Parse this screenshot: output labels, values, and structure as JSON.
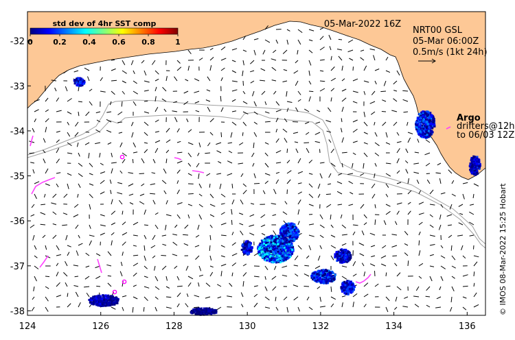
{
  "map": {
    "date_title": "05-Mar-2022 16Z",
    "colorbar": {
      "title": "std dev of 4hr SST comp",
      "ticks": [
        "0",
        "0.2",
        "0.4",
        "0.6",
        "0.8",
        "1"
      ],
      "colors": [
        "#00007f",
        "#0000ff",
        "#007fff",
        "#00ffff",
        "#7fff7f",
        "#ffff00",
        "#ff7f00",
        "#ff0000",
        "#7f0000"
      ]
    },
    "info": {
      "line1": "NRT00 GSL",
      "line2": "05-Mar 06:00Z",
      "line3": "0.5m/s (1kt 24h)"
    },
    "legend": {
      "argo": "Argo",
      "drifters_line1": "drifters@12h",
      "drifters_line2": "to 06/03 12Z"
    },
    "credit": "© IMOS 08-Mar-2022 15:25 Hobart",
    "x_axis": {
      "ticks": [
        "124",
        "126",
        "128",
        "130",
        "132",
        "134",
        "136"
      ],
      "range": [
        124,
        136.5
      ]
    },
    "y_axis": {
      "ticks": [
        "-32",
        "-33",
        "-34",
        "-35",
        "-36",
        "-37",
        "-38"
      ],
      "range": [
        -38.1,
        -31.35
      ]
    },
    "colors": {
      "land": "#fdc896",
      "argo": "#ff00ff",
      "drifter": "#ff40ff",
      "isobath": "#a0a0a0",
      "sst_low": "#00007f"
    }
  }
}
